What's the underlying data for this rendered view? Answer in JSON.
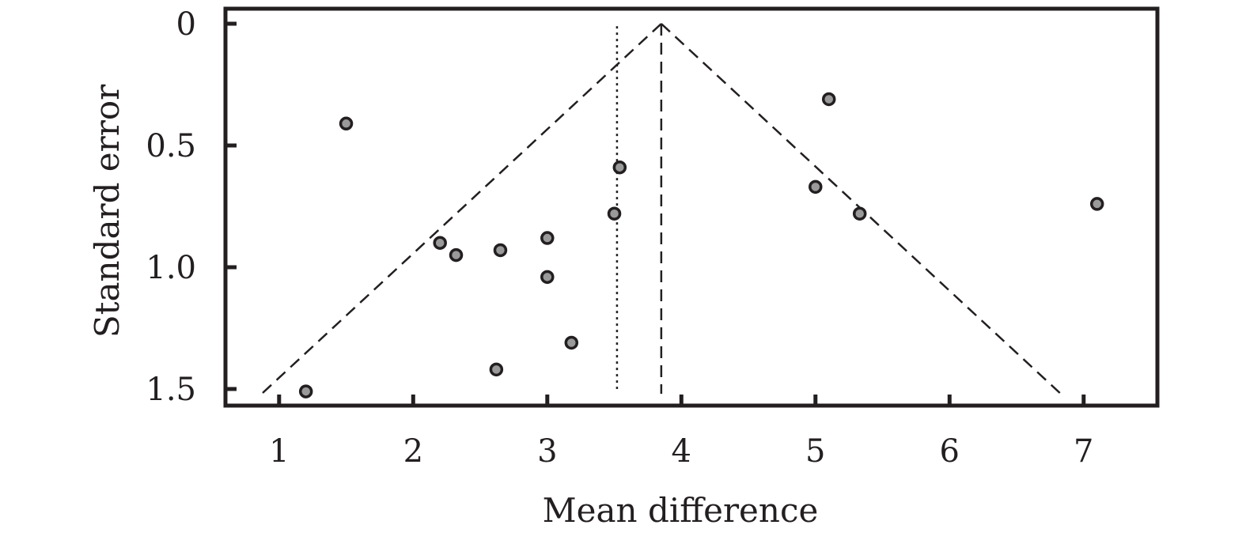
{
  "chart_data": {
    "type": "scatter",
    "title": "",
    "xlabel": "Mean difference",
    "ylabel": "Standard error",
    "xlim": [
      0.6,
      7.55
    ],
    "ylim": [
      0,
      1.6
    ],
    "y_inverted": true,
    "x_ticks": [
      1,
      2,
      3,
      4,
      5,
      6,
      7
    ],
    "x_tick_labels": [
      "1",
      "2",
      "3",
      "4",
      "5",
      "6",
      "7"
    ],
    "y_ticks": [
      0,
      0.5,
      1.0,
      1.5
    ],
    "y_tick_labels": [
      "0",
      "0.5",
      "1.0",
      "1.5"
    ],
    "grid": false,
    "legend": "none",
    "point_color": "#9a9a9a",
    "line_color": "#231f20",
    "points": [
      {
        "x": 1.2,
        "y": 1.51
      },
      {
        "x": 1.5,
        "y": 0.41
      },
      {
        "x": 2.2,
        "y": 0.9
      },
      {
        "x": 2.32,
        "y": 0.95
      },
      {
        "x": 2.62,
        "y": 1.42
      },
      {
        "x": 2.65,
        "y": 0.93
      },
      {
        "x": 3.0,
        "y": 0.88
      },
      {
        "x": 3.0,
        "y": 1.04
      },
      {
        "x": 3.18,
        "y": 1.31
      },
      {
        "x": 3.5,
        "y": 0.78
      },
      {
        "x": 3.54,
        "y": 0.59
      },
      {
        "x": 5.0,
        "y": 0.67
      },
      {
        "x": 5.1,
        "y": 0.31
      },
      {
        "x": 5.33,
        "y": 0.78
      },
      {
        "x": 7.1,
        "y": 0.74
      }
    ],
    "pooled_estimate": 3.85,
    "funnel_lines": [
      {
        "x1": 3.85,
        "y1": 0,
        "x2": 0.87,
        "y2": 1.52
      },
      {
        "x1": 3.85,
        "y1": 0,
        "x2": 6.83,
        "y2": 1.52
      }
    ],
    "dotted_line": {
      "x": 3.52,
      "y1": 0.01,
      "y2": 1.5
    }
  }
}
